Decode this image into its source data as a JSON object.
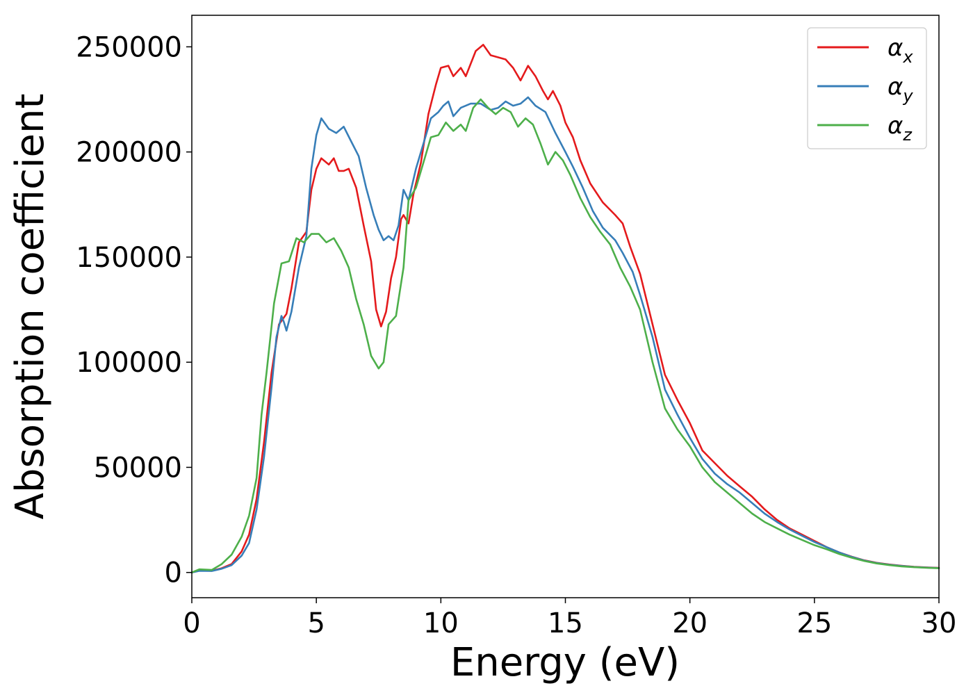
{
  "chart_data": {
    "type": "line",
    "title": "",
    "xlabel": "Energy (eV)",
    "ylabel": "Absorption coefficient",
    "xlim": [
      0,
      30
    ],
    "ylim": [
      -12000,
      265000
    ],
    "xticks": [
      0,
      5,
      10,
      15,
      20,
      25,
      30
    ],
    "yticks": [
      0,
      50000,
      100000,
      150000,
      200000,
      250000
    ],
    "grid": false,
    "legend": "top-right",
    "series": [
      {
        "name": "αx",
        "symbol": "α",
        "subscript": "x",
        "color": "#e41a1c",
        "points": [
          [
            0,
            0
          ],
          [
            0.3,
            1000
          ],
          [
            0.8,
            800
          ],
          [
            1.2,
            2000
          ],
          [
            1.6,
            4000
          ],
          [
            2.0,
            10000
          ],
          [
            2.3,
            18000
          ],
          [
            2.6,
            35000
          ],
          [
            2.9,
            62000
          ],
          [
            3.2,
            95000
          ],
          [
            3.5,
            118000
          ],
          [
            3.8,
            123000
          ],
          [
            4.0,
            135000
          ],
          [
            4.3,
            157000
          ],
          [
            4.6,
            162000
          ],
          [
            4.8,
            182000
          ],
          [
            5.0,
            192000
          ],
          [
            5.2,
            197000
          ],
          [
            5.5,
            194000
          ],
          [
            5.7,
            197000
          ],
          [
            5.9,
            191000
          ],
          [
            6.1,
            191000
          ],
          [
            6.3,
            192000
          ],
          [
            6.6,
            183000
          ],
          [
            6.9,
            165000
          ],
          [
            7.2,
            148000
          ],
          [
            7.4,
            125000
          ],
          [
            7.6,
            117000
          ],
          [
            7.8,
            124000
          ],
          [
            8.0,
            140000
          ],
          [
            8.2,
            150000
          ],
          [
            8.4,
            168000
          ],
          [
            8.5,
            170000
          ],
          [
            8.7,
            166000
          ],
          [
            8.9,
            180000
          ],
          [
            9.2,
            195000
          ],
          [
            9.5,
            218000
          ],
          [
            9.8,
            232000
          ],
          [
            10.0,
            240000
          ],
          [
            10.3,
            241000
          ],
          [
            10.5,
            236000
          ],
          [
            10.8,
            240000
          ],
          [
            11.0,
            236000
          ],
          [
            11.4,
            248000
          ],
          [
            11.7,
            251000
          ],
          [
            12.0,
            246000
          ],
          [
            12.3,
            245000
          ],
          [
            12.6,
            244000
          ],
          [
            12.9,
            240000
          ],
          [
            13.2,
            234000
          ],
          [
            13.5,
            241000
          ],
          [
            13.8,
            236000
          ],
          [
            14.1,
            229000
          ],
          [
            14.3,
            225000
          ],
          [
            14.5,
            229000
          ],
          [
            14.8,
            222000
          ],
          [
            15.0,
            214000
          ],
          [
            15.3,
            207000
          ],
          [
            15.6,
            196000
          ],
          [
            16.0,
            185000
          ],
          [
            16.5,
            176000
          ],
          [
            17.0,
            170000
          ],
          [
            17.3,
            166000
          ],
          [
            17.6,
            155000
          ],
          [
            18.0,
            142000
          ],
          [
            18.5,
            118000
          ],
          [
            19.0,
            94000
          ],
          [
            19.5,
            82000
          ],
          [
            20.0,
            71000
          ],
          [
            20.5,
            58000
          ],
          [
            21.0,
            52000
          ],
          [
            21.5,
            46000
          ],
          [
            22.0,
            41000
          ],
          [
            22.5,
            36000
          ],
          [
            23.0,
            30000
          ],
          [
            23.5,
            25000
          ],
          [
            24.0,
            21000
          ],
          [
            24.5,
            18000
          ],
          [
            25.0,
            15000
          ],
          [
            25.5,
            12000
          ],
          [
            26.0,
            9500
          ],
          [
            26.5,
            7500
          ],
          [
            27.0,
            5800
          ],
          [
            27.5,
            4600
          ],
          [
            28.0,
            3800
          ],
          [
            28.5,
            3200
          ],
          [
            29.0,
            2700
          ],
          [
            29.5,
            2400
          ],
          [
            30.0,
            2200
          ]
        ]
      },
      {
        "name": "αy",
        "symbol": "α",
        "subscript": "y",
        "color": "#377eb8",
        "points": [
          [
            0,
            0
          ],
          [
            0.3,
            800
          ],
          [
            0.8,
            700
          ],
          [
            1.2,
            1800
          ],
          [
            1.6,
            3500
          ],
          [
            2.0,
            8000
          ],
          [
            2.3,
            14000
          ],
          [
            2.6,
            30000
          ],
          [
            2.9,
            55000
          ],
          [
            3.2,
            88000
          ],
          [
            3.4,
            112000
          ],
          [
            3.6,
            122000
          ],
          [
            3.7,
            119000
          ],
          [
            3.8,
            115000
          ],
          [
            4.0,
            124000
          ],
          [
            4.3,
            145000
          ],
          [
            4.6,
            160000
          ],
          [
            4.8,
            192000
          ],
          [
            5.0,
            208000
          ],
          [
            5.2,
            216000
          ],
          [
            5.5,
            211000
          ],
          [
            5.8,
            209000
          ],
          [
            6.1,
            212000
          ],
          [
            6.4,
            205000
          ],
          [
            6.7,
            198000
          ],
          [
            7.0,
            183000
          ],
          [
            7.3,
            170000
          ],
          [
            7.5,
            163000
          ],
          [
            7.7,
            158000
          ],
          [
            7.9,
            160000
          ],
          [
            8.1,
            158000
          ],
          [
            8.3,
            165000
          ],
          [
            8.5,
            182000
          ],
          [
            8.7,
            177000
          ],
          [
            9.0,
            192000
          ],
          [
            9.3,
            204000
          ],
          [
            9.6,
            216000
          ],
          [
            9.9,
            219000
          ],
          [
            10.1,
            222000
          ],
          [
            10.3,
            224000
          ],
          [
            10.5,
            217000
          ],
          [
            10.8,
            221000
          ],
          [
            11.2,
            223000
          ],
          [
            11.6,
            223000
          ],
          [
            12.0,
            220000
          ],
          [
            12.3,
            221000
          ],
          [
            12.6,
            224000
          ],
          [
            12.9,
            222000
          ],
          [
            13.2,
            223000
          ],
          [
            13.5,
            226000
          ],
          [
            13.8,
            222000
          ],
          [
            14.2,
            219000
          ],
          [
            14.6,
            209000
          ],
          [
            15.0,
            200000
          ],
          [
            15.3,
            193000
          ],
          [
            15.7,
            183000
          ],
          [
            16.1,
            172000
          ],
          [
            16.5,
            164000
          ],
          [
            17.0,
            158000
          ],
          [
            17.3,
            152000
          ],
          [
            17.7,
            143000
          ],
          [
            18.0,
            132000
          ],
          [
            18.5,
            112000
          ],
          [
            19.0,
            87000
          ],
          [
            19.5,
            75000
          ],
          [
            20.0,
            64000
          ],
          [
            20.5,
            54000
          ],
          [
            21.0,
            47000
          ],
          [
            21.5,
            42000
          ],
          [
            22.0,
            38000
          ],
          [
            22.5,
            33000
          ],
          [
            23.0,
            28000
          ],
          [
            23.5,
            24000
          ],
          [
            24.0,
            20500
          ],
          [
            24.5,
            17500
          ],
          [
            25.0,
            14500
          ],
          [
            25.5,
            12000
          ],
          [
            26.0,
            9500
          ],
          [
            26.5,
            7400
          ],
          [
            27.0,
            5700
          ],
          [
            27.5,
            4500
          ],
          [
            28.0,
            3700
          ],
          [
            28.5,
            3100
          ],
          [
            29.0,
            2600
          ],
          [
            29.5,
            2300
          ],
          [
            30.0,
            2100
          ]
        ]
      },
      {
        "name": "αz",
        "symbol": "α",
        "subscript": "z",
        "color": "#4daf4a",
        "points": [
          [
            0,
            0
          ],
          [
            0.3,
            1500
          ],
          [
            0.8,
            1200
          ],
          [
            1.2,
            4000
          ],
          [
            1.6,
            8500
          ],
          [
            2.0,
            17000
          ],
          [
            2.3,
            27000
          ],
          [
            2.6,
            45000
          ],
          [
            2.8,
            75000
          ],
          [
            3.0,
            95000
          ],
          [
            3.3,
            128000
          ],
          [
            3.6,
            147000
          ],
          [
            3.9,
            148000
          ],
          [
            4.2,
            159000
          ],
          [
            4.5,
            157000
          ],
          [
            4.8,
            161000
          ],
          [
            5.1,
            161000
          ],
          [
            5.4,
            157000
          ],
          [
            5.7,
            159000
          ],
          [
            6.0,
            153000
          ],
          [
            6.3,
            145000
          ],
          [
            6.6,
            130000
          ],
          [
            6.9,
            118000
          ],
          [
            7.2,
            103000
          ],
          [
            7.5,
            97000
          ],
          [
            7.7,
            100000
          ],
          [
            7.9,
            118000
          ],
          [
            8.2,
            122000
          ],
          [
            8.5,
            145000
          ],
          [
            8.7,
            177000
          ],
          [
            9.0,
            183000
          ],
          [
            9.3,
            195000
          ],
          [
            9.6,
            207000
          ],
          [
            9.9,
            208000
          ],
          [
            10.2,
            214000
          ],
          [
            10.5,
            210000
          ],
          [
            10.8,
            213000
          ],
          [
            11.0,
            210000
          ],
          [
            11.3,
            221000
          ],
          [
            11.6,
            225000
          ],
          [
            11.9,
            221000
          ],
          [
            12.2,
            218000
          ],
          [
            12.5,
            221000
          ],
          [
            12.8,
            219000
          ],
          [
            13.1,
            212000
          ],
          [
            13.4,
            216000
          ],
          [
            13.7,
            213000
          ],
          [
            14.0,
            204000
          ],
          [
            14.3,
            194000
          ],
          [
            14.6,
            200000
          ],
          [
            14.9,
            196000
          ],
          [
            15.2,
            189000
          ],
          [
            15.6,
            178000
          ],
          [
            16.0,
            169000
          ],
          [
            16.4,
            162000
          ],
          [
            16.8,
            156000
          ],
          [
            17.2,
            145000
          ],
          [
            17.6,
            136000
          ],
          [
            18.0,
            125000
          ],
          [
            18.5,
            100000
          ],
          [
            19.0,
            78000
          ],
          [
            19.5,
            68000
          ],
          [
            20.0,
            60000
          ],
          [
            20.5,
            50000
          ],
          [
            21.0,
            43000
          ],
          [
            21.5,
            38000
          ],
          [
            22.0,
            33000
          ],
          [
            22.5,
            28000
          ],
          [
            23.0,
            24000
          ],
          [
            23.5,
            21000
          ],
          [
            24.0,
            18000
          ],
          [
            24.5,
            15500
          ],
          [
            25.0,
            13000
          ],
          [
            25.5,
            11000
          ],
          [
            26.0,
            8800
          ],
          [
            26.5,
            7000
          ],
          [
            27.0,
            5500
          ],
          [
            27.5,
            4300
          ],
          [
            28.0,
            3500
          ],
          [
            28.5,
            2900
          ],
          [
            29.0,
            2500
          ],
          [
            29.5,
            2200
          ],
          [
            30.0,
            2000
          ]
        ]
      }
    ]
  }
}
